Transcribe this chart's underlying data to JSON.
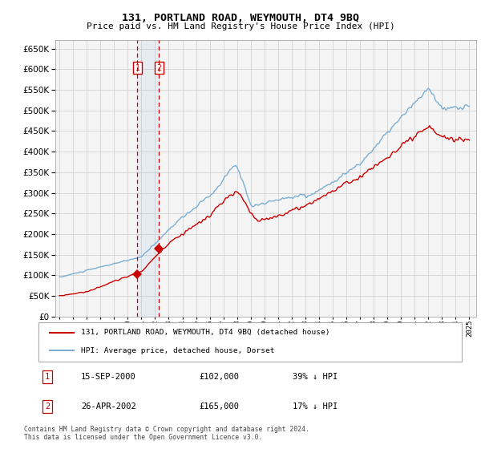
{
  "title": "131, PORTLAND ROAD, WEYMOUTH, DT4 9BQ",
  "subtitle": "Price paid vs. HM Land Registry's House Price Index (HPI)",
  "legend_line1": "131, PORTLAND ROAD, WEYMOUTH, DT4 9BQ (detached house)",
  "legend_line2": "HPI: Average price, detached house, Dorset",
  "transaction1_date": "15-SEP-2000",
  "transaction1_price": 102000,
  "transaction1_label": "39% ↓ HPI",
  "transaction2_date": "26-APR-2002",
  "transaction2_price": 165000,
  "transaction2_label": "17% ↓ HPI",
  "footnote": "Contains HM Land Registry data © Crown copyright and database right 2024.\nThis data is licensed under the Open Government Licence v3.0.",
  "hpi_color": "#7bafd4",
  "price_color": "#cc0000",
  "background_color": "#ffffff",
  "grid_color": "#cccccc",
  "ylim": [
    0,
    670000
  ],
  "xstart": 1995,
  "xend": 2025,
  "t1_year": 2000.71,
  "t2_year": 2002.29
}
